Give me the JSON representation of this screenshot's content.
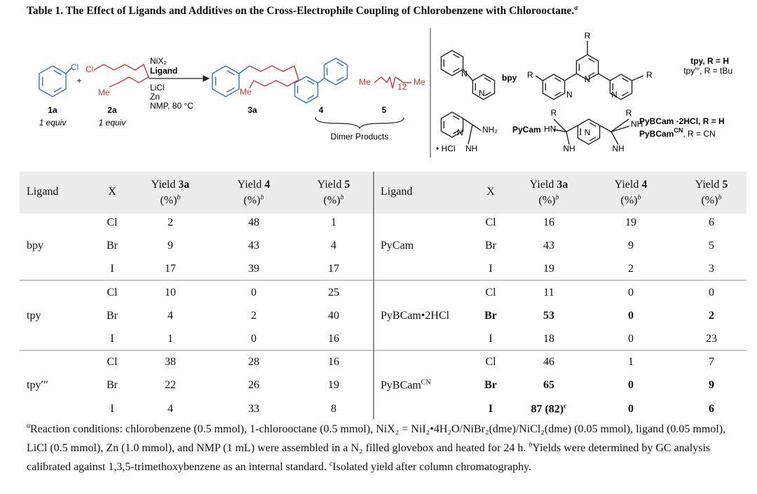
{
  "title": "Table 1. The Effect of Ligands and Additives on the Cross-Electrophile Coupling of Chlorobenzene with Chlorooctane.",
  "title_note": "a",
  "scheme": {
    "substrate_1": {
      "atom": "Cl",
      "label": "1a",
      "equiv": "1 equiv"
    },
    "plus": "+",
    "substrate_2": {
      "atoms": [
        "Cl",
        "Me"
      ],
      "label": "2a",
      "equiv": "1 equiv"
    },
    "conditions": [
      "NiX₂",
      "Ligand",
      "LiCl",
      "Zn",
      "NMP, 80 °C"
    ],
    "product": {
      "atom": "Me",
      "label": "3a"
    },
    "dimer_4": {
      "label": "4"
    },
    "dimer_5": {
      "atoms": [
        "Me",
        "12",
        "Me"
      ],
      "label": "5"
    },
    "dimer_caption": "Dimer Products",
    "ligands": {
      "bpy": {
        "atoms": [
          "N",
          "N"
        ],
        "name": "bpy"
      },
      "tpy": {
        "atoms": [
          "R",
          "R",
          "R",
          "N",
          "N",
          "N"
        ],
        "names": [
          "tpy, R = H",
          "tpy′′′, R = tBu"
        ]
      },
      "pycam": {
        "atoms": [
          "N",
          "NH₂",
          "NH",
          "• HCl"
        ],
        "name": "PyCam"
      },
      "pybcam": {
        "atoms": [
          "R",
          "R",
          "HN",
          "N",
          "NH",
          "NH",
          "NH"
        ],
        "names": [
          "PyBCam ·2HCl, R = H",
          "PyBCam"
        ],
        "name_sup": "CN",
        "name_rest": ", R = CN"
      }
    }
  },
  "table": {
    "columns": [
      "Ligand",
      "X",
      {
        "pre": "Yield",
        "bold": "3a",
        "unit": "(%)",
        "sup": "b"
      },
      {
        "pre": "Yield",
        "bold": "4",
        "unit": "(%)",
        "sup": "b"
      },
      {
        "pre": "Yield",
        "bold": "5",
        "unit": "(%)",
        "sup": "b"
      },
      "Ligand",
      "X",
      {
        "pre": "Yield",
        "bold": "3a",
        "unit": "(%)",
        "sup": "b"
      },
      {
        "pre": "Yield",
        "bold": "4",
        "unit": "(%)",
        "sup": "b"
      },
      {
        "pre": "Yield",
        "bold": "5",
        "unit": "(%)",
        "sup": "b"
      }
    ],
    "left": [
      {
        "ligand": "bpy",
        "rows": [
          [
            "Cl",
            2,
            48,
            1
          ],
          [
            "Br",
            9,
            43,
            4
          ],
          [
            "I",
            17,
            39,
            17
          ]
        ]
      },
      {
        "ligand": "tpy",
        "rows": [
          [
            "Cl",
            10,
            0,
            25
          ],
          [
            "Br",
            4,
            2,
            40
          ],
          [
            "I",
            1,
            0,
            16
          ]
        ]
      },
      {
        "ligand": "tpy′′′",
        "rows": [
          [
            "Cl",
            38,
            28,
            16
          ],
          [
            "Br",
            22,
            26,
            19
          ],
          [
            "I",
            4,
            33,
            8
          ]
        ]
      }
    ],
    "right": [
      {
        "ligand": "PyCam",
        "rows": [
          [
            "Cl",
            16,
            19,
            6
          ],
          [
            "Br",
            43,
            9,
            5
          ],
          [
            "I",
            19,
            2,
            3
          ]
        ],
        "bold_rows": []
      },
      {
        "ligand": "PyBCam•2HCl",
        "rows": [
          [
            "Cl",
            11,
            0,
            0
          ],
          [
            "Br",
            53,
            0,
            2
          ],
          [
            "I",
            18,
            0,
            23
          ]
        ],
        "bold_rows": [
          1
        ]
      },
      {
        "ligand": "PyBCam",
        "ligand_sup": "CN",
        "rows": [
          [
            "Cl",
            46,
            1,
            7
          ],
          [
            "Br",
            65,
            0,
            9
          ],
          [
            "I",
            {
              "text": "87 (82)",
              "sup": "c"
            },
            0,
            6
          ]
        ],
        "bold_rows": [
          1,
          2
        ]
      }
    ]
  },
  "footnotes": [
    {
      "mark": "a",
      "text": "Reaction conditions: chlorobenzene (0.5 mmol), 1-chlorooctane (0.5 mmol), NiX₂ = NiI₂•4H₂O/NiBr₂(dme)/NiCl₂(dme) (0.05 mmol), ligand (0.05 mmol), LiCl (0.5 mmol), Zn (1.0 mmol), and NMP (1 mL) were assembled in a N₂ filled glovebox and heated for 24 h."
    },
    {
      "mark": "b",
      "text": "Yields were determined by GC analysis calibrated against 1,3,5-trimethoxybenzene as an internal standard."
    },
    {
      "mark": "c",
      "text": "Isolated yield after column chromatography."
    }
  ]
}
